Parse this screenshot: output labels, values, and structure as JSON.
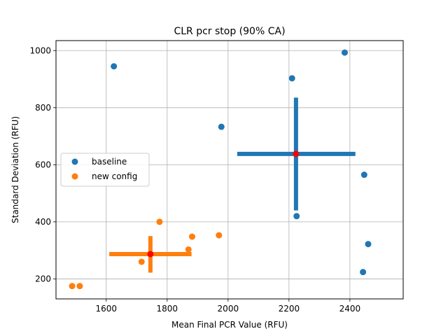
{
  "chart_data": {
    "type": "scatter",
    "title": "CLR pcr stop (90% CA)",
    "xlabel": "Mean Final PCR Value (RFU)",
    "ylabel": "Standard Deviation (RFU)",
    "xlim": [
      1435,
      2575
    ],
    "ylim": [
      130,
      1035
    ],
    "xticks": [
      1600,
      1800,
      2000,
      2200,
      2400
    ],
    "yticks": [
      200,
      400,
      600,
      800,
      1000
    ],
    "xtick_labels": [
      "1600",
      "1800",
      "2000",
      "2200",
      "2400"
    ],
    "ytick_labels": [
      "200",
      "400",
      "600",
      "800",
      "1000"
    ],
    "grid": true,
    "legend_position": "center-left",
    "series": [
      {
        "name": "baseline",
        "color": "#1f77b4",
        "points": [
          {
            "x": 1625,
            "y": 945
          },
          {
            "x": 1978,
            "y": 733
          },
          {
            "x": 2210,
            "y": 903
          },
          {
            "x": 2225,
            "y": 420
          },
          {
            "x": 2383,
            "y": 993
          },
          {
            "x": 2447,
            "y": 565
          },
          {
            "x": 2460,
            "y": 322
          },
          {
            "x": 2443,
            "y": 224
          }
        ],
        "mean": {
          "x": 2223,
          "y": 638
        },
        "error_x": [
          2030,
          2418
        ],
        "error_y": [
          440,
          835
        ]
      },
      {
        "name": "new config",
        "color": "#ff7f0e",
        "points": [
          {
            "x": 1488,
            "y": 175
          },
          {
            "x": 1513,
            "y": 175
          },
          {
            "x": 1716,
            "y": 260
          },
          {
            "x": 1775,
            "y": 400
          },
          {
            "x": 1870,
            "y": 303
          },
          {
            "x": 1882,
            "y": 348
          },
          {
            "x": 1970,
            "y": 353
          }
        ],
        "mean": {
          "x": 1745,
          "y": 287
        },
        "error_x": [
          1610,
          1880
        ],
        "error_y": [
          222,
          350
        ]
      }
    ],
    "mean_marker_color": "#ff0000"
  }
}
